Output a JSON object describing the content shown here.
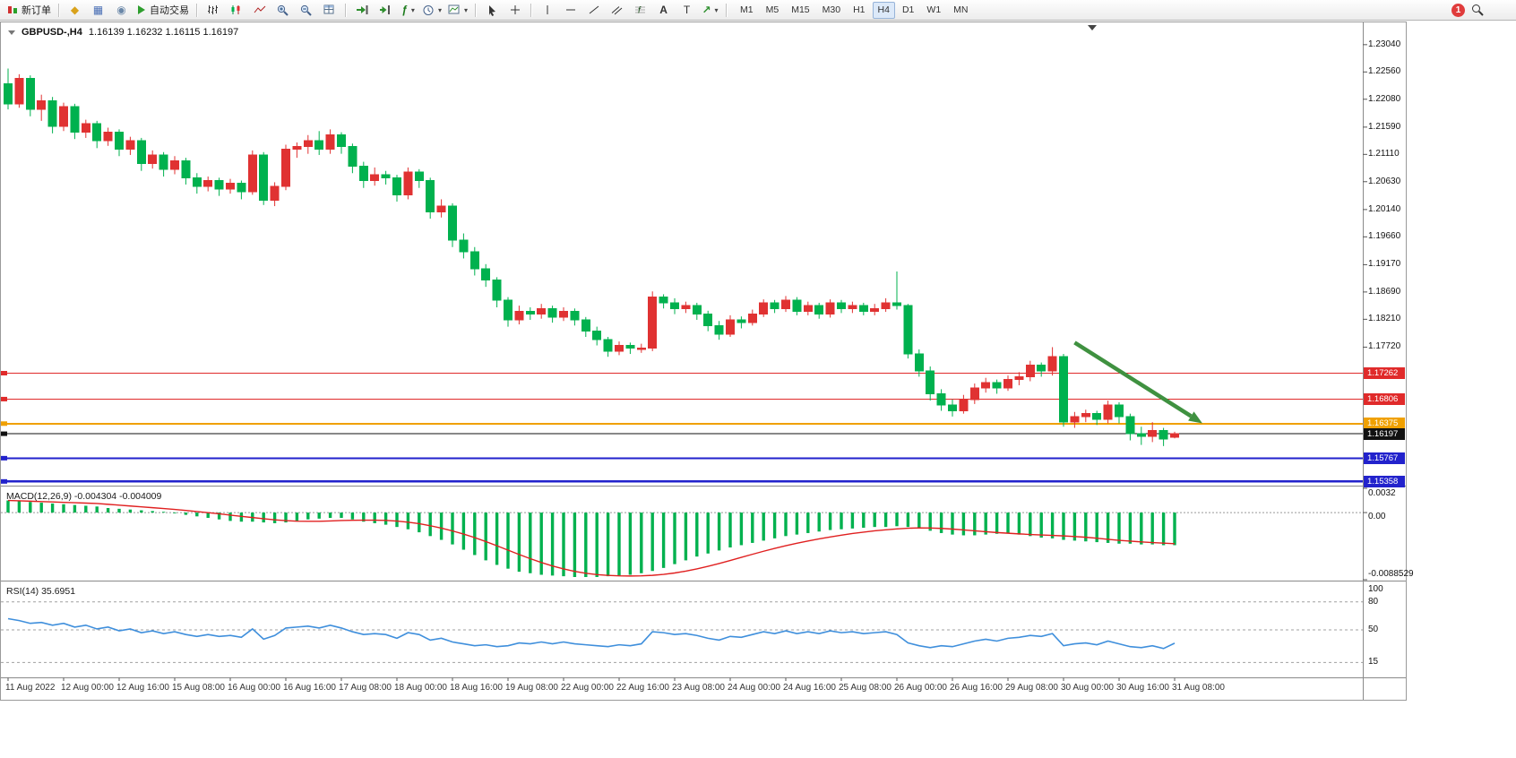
{
  "toolbar": {
    "new_order_label": "新订单",
    "auto_trading_label": "自动交易",
    "timeframes": [
      "M1",
      "M5",
      "M15",
      "M30",
      "H1",
      "H4",
      "D1",
      "W1",
      "MN"
    ],
    "active_timeframe": "H4",
    "notification_count": "1"
  },
  "chart_data": [
    {
      "type": "candlestick",
      "title": "GBPUSD-,H4",
      "symbol": "GBPUSD-",
      "timeframe": "H4",
      "ohlc_text": "1.16139 1.16232 1.16115 1.16197",
      "open": "1.16139",
      "high": "1.16232",
      "low": "1.16115",
      "close": "1.16197",
      "ylim": [
        1.153,
        1.234
      ],
      "grid": false,
      "colors": {
        "bull": "#e03232",
        "bear": "#00b14e"
      },
      "y_axis_ticks": [
        "1.23040",
        "1.22560",
        "1.22080",
        "1.21590",
        "1.21110",
        "1.20630",
        "1.20140",
        "1.19660",
        "1.19170",
        "1.18690",
        "1.18210",
        "1.17720"
      ],
      "levels": [
        {
          "price": 1.17262,
          "label": "1.17262",
          "color": "#e02a2a",
          "width": 1.3,
          "kind": "resistance"
        },
        {
          "price": 1.16806,
          "label": "1.16806",
          "color": "#e02a2a",
          "width": 1.3,
          "kind": "resistance"
        },
        {
          "price": 1.16375,
          "label": "1.16375",
          "color": "#f0a000",
          "width": 2.0,
          "kind": "pivot"
        },
        {
          "price": 1.16197,
          "label": "1.16197",
          "color": "#111111",
          "width": 1.1,
          "kind": "current-price"
        },
        {
          "price": 1.15767,
          "label": "1.15767",
          "color": "#2222cc",
          "width": 2.2,
          "kind": "support"
        },
        {
          "price": 1.15358,
          "label": "1.15358",
          "color": "#2222cc",
          "width": 2.2,
          "kind": "support"
        }
      ],
      "annotation_arrow": {
        "from": {
          "index": 96,
          "price": 1.178
        },
        "to": {
          "index": 107.5,
          "price": 1.1638
        },
        "color": "#3f9140"
      },
      "time_labels": [
        "11 Aug 2022",
        "12 Aug 00:00",
        "12 Aug 16:00",
        "15 Aug 08:00",
        "16 Aug 00:00",
        "16 Aug 16:00",
        "17 Aug 08:00",
        "18 Aug 00:00",
        "18 Aug 16:00",
        "19 Aug 08:00",
        "22 Aug 00:00",
        "22 Aug 16:00",
        "23 Aug 08:00",
        "24 Aug 00:00",
        "24 Aug 16:00",
        "25 Aug 08:00",
        "26 Aug 00:00",
        "26 Aug 16:00",
        "29 Aug 08:00",
        "30 Aug 00:00",
        "30 Aug 16:00",
        "31 Aug 08:00"
      ],
      "candles": [
        [
          1.2235,
          1.2262,
          1.219,
          1.22
        ],
        [
          1.22,
          1.2252,
          1.2193,
          1.2245
        ],
        [
          1.2245,
          1.225,
          1.2178,
          1.219
        ],
        [
          1.219,
          1.2216,
          1.217,
          1.2205
        ],
        [
          1.2205,
          1.2212,
          1.2148,
          1.216
        ],
        [
          1.216,
          1.2202,
          1.2152,
          1.2195
        ],
        [
          1.2195,
          1.22,
          1.2138,
          1.215
        ],
        [
          1.215,
          1.2172,
          1.214,
          1.2165
        ],
        [
          1.2165,
          1.217,
          1.2122,
          1.2135
        ],
        [
          1.2135,
          1.2158,
          1.2126,
          1.215
        ],
        [
          1.215,
          1.2155,
          1.2108,
          1.212
        ],
        [
          1.212,
          1.2142,
          1.211,
          1.2135
        ],
        [
          1.2135,
          1.214,
          1.2082,
          1.2095
        ],
        [
          1.2095,
          1.2118,
          1.2086,
          1.211
        ],
        [
          1.211,
          1.2115,
          1.2072,
          1.2085
        ],
        [
          1.2085,
          1.2108,
          1.2076,
          1.21
        ],
        [
          1.21,
          1.2105,
          1.2058,
          1.207
        ],
        [
          1.207,
          1.2078,
          1.2042,
          1.2055
        ],
        [
          1.2055,
          1.2072,
          1.2046,
          1.2065
        ],
        [
          1.2065,
          1.207,
          1.2038,
          1.205
        ],
        [
          1.205,
          1.2068,
          1.2042,
          1.206
        ],
        [
          1.206,
          1.2065,
          1.2032,
          1.2045
        ],
        [
          1.2045,
          1.2118,
          1.204,
          1.211
        ],
        [
          1.211,
          1.2115,
          1.2022,
          1.203
        ],
        [
          1.203,
          1.2062,
          1.202,
          1.2055
        ],
        [
          1.2055,
          1.2128,
          1.2048,
          1.212
        ],
        [
          1.212,
          1.2132,
          1.2105,
          1.2125
        ],
        [
          1.2125,
          1.2145,
          1.2112,
          1.2135
        ],
        [
          1.2135,
          1.2152,
          1.211,
          1.212
        ],
        [
          1.212,
          1.2155,
          1.2112,
          1.2145
        ],
        [
          1.2145,
          1.215,
          1.2112,
          1.2125
        ],
        [
          1.2125,
          1.213,
          1.2078,
          1.209
        ],
        [
          1.209,
          1.2098,
          1.2052,
          1.2065
        ],
        [
          1.2065,
          1.2088,
          1.2056,
          1.2075
        ],
        [
          1.2075,
          1.2082,
          1.2058,
          1.207
        ],
        [
          1.207,
          1.2075,
          1.2028,
          1.204
        ],
        [
          1.204,
          1.2088,
          1.2032,
          1.208
        ],
        [
          1.208,
          1.2085,
          1.2052,
          1.2065
        ],
        [
          1.2065,
          1.207,
          1.1998,
          1.201
        ],
        [
          1.201,
          1.2032,
          1.2,
          1.202
        ],
        [
          1.202,
          1.2025,
          1.1948,
          1.196
        ],
        [
          1.196,
          1.1972,
          1.1928,
          1.194
        ],
        [
          1.194,
          1.1948,
          1.1898,
          1.191
        ],
        [
          1.191,
          1.1918,
          1.1878,
          1.189
        ],
        [
          1.189,
          1.1895,
          1.1842,
          1.1855
        ],
        [
          1.1855,
          1.186,
          1.1808,
          1.182
        ],
        [
          1.182,
          1.1845,
          1.1812,
          1.1835
        ],
        [
          1.1835,
          1.1842,
          1.182,
          1.183
        ],
        [
          1.183,
          1.1848,
          1.1822,
          1.184
        ],
        [
          1.184,
          1.1845,
          1.1815,
          1.1825
        ],
        [
          1.1825,
          1.1842,
          1.1818,
          1.1835
        ],
        [
          1.1835,
          1.184,
          1.181,
          1.182
        ],
        [
          1.182,
          1.1825,
          1.179,
          1.18
        ],
        [
          1.18,
          1.1808,
          1.1775,
          1.1785
        ],
        [
          1.1785,
          1.179,
          1.1755,
          1.1765
        ],
        [
          1.1765,
          1.1782,
          1.1758,
          1.1775
        ],
        [
          1.1775,
          1.178,
          1.176,
          1.177
        ],
        [
          1.177,
          1.1778,
          1.1762,
          1.177
        ],
        [
          1.177,
          1.187,
          1.1765,
          1.186
        ],
        [
          1.186,
          1.1865,
          1.184,
          1.185
        ],
        [
          1.185,
          1.1858,
          1.183,
          1.184
        ],
        [
          1.184,
          1.1852,
          1.1832,
          1.1845
        ],
        [
          1.1845,
          1.185,
          1.182,
          1.183
        ],
        [
          1.183,
          1.1836,
          1.18,
          1.181
        ],
        [
          1.181,
          1.1818,
          1.1785,
          1.1795
        ],
        [
          1.1795,
          1.1828,
          1.179,
          1.182
        ],
        [
          1.182,
          1.1826,
          1.1805,
          1.1815
        ],
        [
          1.1815,
          1.1838,
          1.181,
          1.183
        ],
        [
          1.183,
          1.1856,
          1.1825,
          1.185
        ],
        [
          1.185,
          1.1855,
          1.1832,
          1.184
        ],
        [
          1.184,
          1.1862,
          1.1834,
          1.1855
        ],
        [
          1.1855,
          1.186,
          1.1828,
          1.1835
        ],
        [
          1.1835,
          1.1852,
          1.1828,
          1.1845
        ],
        [
          1.1845,
          1.185,
          1.1822,
          1.183
        ],
        [
          1.183,
          1.1856,
          1.1824,
          1.185
        ],
        [
          1.185,
          1.1855,
          1.1832,
          1.184
        ],
        [
          1.184,
          1.1852,
          1.1832,
          1.1845
        ],
        [
          1.1845,
          1.185,
          1.1828,
          1.1835
        ],
        [
          1.1835,
          1.1848,
          1.1828,
          1.184
        ],
        [
          1.184,
          1.1858,
          1.1834,
          1.185
        ],
        [
          1.185,
          1.1905,
          1.1838,
          1.1845
        ],
        [
          1.1845,
          1.1848,
          1.1752,
          1.176
        ],
        [
          1.176,
          1.1768,
          1.172,
          1.173
        ],
        [
          1.173,
          1.1738,
          1.1678,
          1.169
        ],
        [
          1.169,
          1.1698,
          1.166,
          1.167
        ],
        [
          1.167,
          1.168,
          1.165,
          1.166
        ],
        [
          1.166,
          1.1688,
          1.1655,
          1.168
        ],
        [
          1.168,
          1.1708,
          1.1672,
          1.17
        ],
        [
          1.17,
          1.1718,
          1.1692,
          1.171
        ],
        [
          1.171,
          1.1715,
          1.169,
          1.17
        ],
        [
          1.17,
          1.1722,
          1.1695,
          1.1715
        ],
        [
          1.1715,
          1.1728,
          1.1705,
          1.172
        ],
        [
          1.172,
          1.1748,
          1.1712,
          1.174
        ],
        [
          1.174,
          1.1745,
          1.172,
          1.173
        ],
        [
          1.173,
          1.1772,
          1.1722,
          1.1755
        ],
        [
          1.1755,
          1.176,
          1.1632,
          1.164
        ],
        [
          1.164,
          1.1658,
          1.163,
          1.165
        ],
        [
          1.165,
          1.1662,
          1.164,
          1.1655
        ],
        [
          1.1655,
          1.166,
          1.1635,
          1.1645
        ],
        [
          1.1645,
          1.1678,
          1.1638,
          1.167
        ],
        [
          1.167,
          1.1675,
          1.1638,
          1.165
        ],
        [
          1.165,
          1.1655,
          1.1608,
          1.162
        ],
        [
          1.162,
          1.1632,
          1.16,
          1.1615
        ],
        [
          1.1615,
          1.164,
          1.1605,
          1.1625
        ],
        [
          1.1625,
          1.163,
          1.1598,
          1.161
        ],
        [
          1.16139,
          1.16232,
          1.16115,
          1.16197
        ]
      ]
    },
    {
      "type": "bar",
      "name": "MACD",
      "params": "12,26,9",
      "macd_value": "-0.004304",
      "signal_value": "-0.004009",
      "label": "MACD(12,26,9) -0.004304 -0.004009",
      "ylim": [
        -0.0088529,
        0.0032
      ],
      "y_axis_ticks": [
        "0.0032",
        "0.00",
        "-0.0088529"
      ],
      "colors": {
        "histogram": "#00b14e",
        "signal": "#e02020"
      },
      "values": [
        0.0016,
        0.0015,
        0.0014,
        0.0013,
        0.0012,
        0.0011,
        0.001,
        0.0009,
        0.0008,
        0.0006,
        0.0005,
        0.0004,
        0.0003,
        0.0002,
        0.0001,
        -0.0001,
        -0.0003,
        -0.0005,
        -0.0007,
        -0.0009,
        -0.0011,
        -0.0012,
        -0.0012,
        -0.0013,
        -0.0014,
        -0.0013,
        -0.0011,
        -0.0009,
        -0.0008,
        -0.0007,
        -0.0007,
        -0.0009,
        -0.0012,
        -0.0014,
        -0.0016,
        -0.0019,
        -0.0022,
        -0.0026,
        -0.0031,
        -0.0036,
        -0.0042,
        -0.0049,
        -0.0056,
        -0.0063,
        -0.0069,
        -0.0074,
        -0.0078,
        -0.008,
        -0.0082,
        -0.0083,
        -0.0084,
        -0.0085,
        -0.0085,
        -0.0085,
        -0.0084,
        -0.0083,
        -0.0082,
        -0.008,
        -0.0077,
        -0.0073,
        -0.0068,
        -0.0063,
        -0.0058,
        -0.0054,
        -0.005,
        -0.0046,
        -0.0043,
        -0.004,
        -0.0037,
        -0.0034,
        -0.0031,
        -0.0029,
        -0.0027,
        -0.0025,
        -0.0023,
        -0.0022,
        -0.0021,
        -0.002,
        -0.0019,
        -0.0019,
        -0.0018,
        -0.0019,
        -0.0021,
        -0.0024,
        -0.0027,
        -0.0029,
        -0.003,
        -0.003,
        -0.0029,
        -0.0028,
        -0.0027,
        -0.0029,
        -0.0031,
        -0.0033,
        -0.0034,
        -0.0036,
        -0.0037,
        -0.0038,
        -0.0039,
        -0.004,
        -0.0041,
        -0.0041,
        -0.0042,
        -0.0042,
        -0.0043,
        -0.0043
      ]
    },
    {
      "type": "line",
      "name": "RSI",
      "params": "14",
      "value": "35.6951",
      "label": "RSI(14) 35.6951",
      "ylim": [
        0,
        100
      ],
      "y_axis_ticks": [
        "100",
        "80",
        "50",
        "15"
      ],
      "levels": [
        80,
        50,
        15
      ],
      "color": "#3f8fdc",
      "values": [
        62,
        60,
        57,
        58,
        55,
        57,
        53,
        55,
        51,
        53,
        49,
        51,
        47,
        49,
        46,
        48,
        45,
        43,
        45,
        43,
        44,
        42,
        51,
        40,
        44,
        52,
        53,
        54,
        52,
        55,
        52,
        48,
        45,
        46,
        45,
        41,
        47,
        45,
        39,
        41,
        37,
        35,
        33,
        34,
        32,
        33,
        36,
        35,
        37,
        35,
        37,
        35,
        34,
        33,
        32,
        34,
        33,
        35,
        48,
        47,
        45,
        46,
        44,
        41,
        39,
        43,
        42,
        45,
        48,
        46,
        49,
        46,
        48,
        46,
        49,
        47,
        48,
        46,
        47,
        48,
        45,
        36,
        33,
        31,
        33,
        32,
        35,
        38,
        40,
        38,
        41,
        42,
        44,
        43,
        46,
        33,
        35,
        36,
        34,
        38,
        35,
        32,
        31,
        33,
        30,
        35.7
      ]
    }
  ]
}
